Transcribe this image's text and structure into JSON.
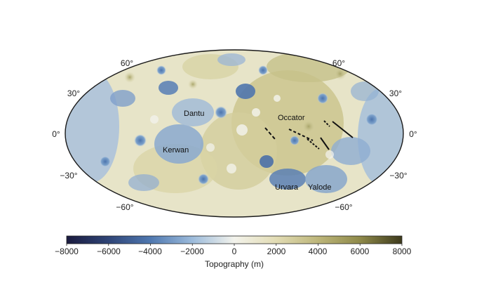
{
  "map": {
    "lat_labels": {
      "left": [
        "60°",
        "30°",
        "0°",
        "−30°",
        "−60°"
      ],
      "right": [
        "60°",
        "30°",
        "0°",
        "−30°",
        "−60°"
      ]
    },
    "features": {
      "dantu": "Dantu",
      "kerwan": "Kerwan",
      "occator": "Occator",
      "urvara": "Urvara",
      "yalode": "Yalode"
    }
  },
  "colorbar": {
    "ticks": [
      "−8000",
      "−6000",
      "−4000",
      "−2000",
      "0",
      "2000",
      "4000",
      "6000",
      "8000"
    ],
    "label": "Topography (m)",
    "colors": [
      "#1a1a3e",
      "#2f4577",
      "#4f78b0",
      "#9cbbdb",
      "#f3f3ec",
      "#e2dcb4",
      "#bdb67a",
      "#8f8a4a",
      "#3d3a1c"
    ]
  }
}
